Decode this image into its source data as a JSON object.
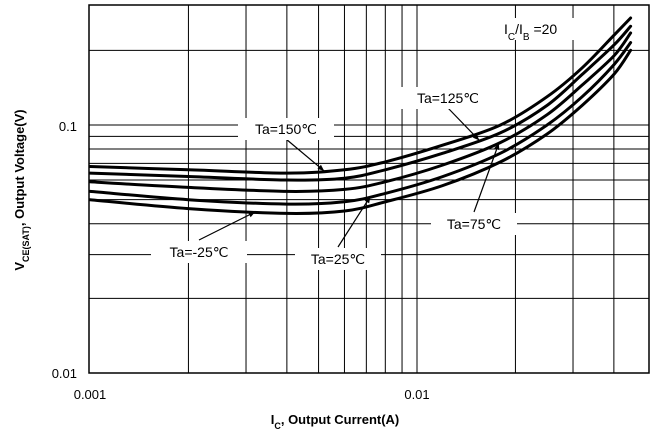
{
  "chart_data": {
    "type": "line",
    "x_scale": "log",
    "y_scale": "log",
    "xlim": [
      0.001,
      0.045
    ],
    "ylim": [
      0.01,
      0.3
    ],
    "grid": true,
    "x_ticks": [
      "0.001",
      "0.01"
    ],
    "y_ticks": [
      "0.01",
      "0.1"
    ],
    "xlabel": {
      "main": "I",
      "sub": "C",
      "rest": ", Output Current(A)"
    },
    "ylabel": {
      "main": "V",
      "sub": "CE(SAT)",
      "rest": ", Output Voltage(V)"
    },
    "condition": {
      "main1": "I",
      "sub1": "C",
      "mid": "/I",
      "sub2": "B",
      "rest": " =20"
    },
    "series": [
      {
        "name": "Ta=150℃",
        "x": [
          0.001,
          0.002,
          0.004,
          0.006,
          0.008,
          0.012,
          0.018,
          0.025,
          0.032,
          0.04,
          0.045
        ],
        "y": [
          0.068,
          0.066,
          0.064,
          0.066,
          0.071,
          0.083,
          0.1,
          0.13,
          0.17,
          0.23,
          0.27
        ]
      },
      {
        "name": "Ta=125℃",
        "x": [
          0.001,
          0.002,
          0.004,
          0.006,
          0.008,
          0.012,
          0.018,
          0.025,
          0.032,
          0.04,
          0.045
        ],
        "y": [
          0.064,
          0.062,
          0.06,
          0.061,
          0.066,
          0.077,
          0.093,
          0.12,
          0.16,
          0.21,
          0.25
        ]
      },
      {
        "name": "Ta=75℃",
        "x": [
          0.001,
          0.002,
          0.004,
          0.006,
          0.008,
          0.012,
          0.018,
          0.025,
          0.032,
          0.04,
          0.045
        ],
        "y": [
          0.059,
          0.056,
          0.054,
          0.055,
          0.059,
          0.069,
          0.085,
          0.11,
          0.145,
          0.19,
          0.235
        ]
      },
      {
        "name": "Ta=25℃",
        "x": [
          0.001,
          0.002,
          0.004,
          0.006,
          0.008,
          0.012,
          0.018,
          0.025,
          0.032,
          0.04,
          0.045
        ],
        "y": [
          0.054,
          0.05,
          0.048,
          0.049,
          0.053,
          0.062,
          0.077,
          0.1,
          0.13,
          0.175,
          0.215
        ]
      },
      {
        "name": "Ta=-25℃",
        "x": [
          0.001,
          0.002,
          0.004,
          0.006,
          0.008,
          0.012,
          0.018,
          0.025,
          0.032,
          0.04,
          0.045
        ],
        "y": [
          0.05,
          0.046,
          0.044,
          0.045,
          0.049,
          0.057,
          0.071,
          0.092,
          0.12,
          0.16,
          0.2
        ]
      }
    ],
    "annotations": [
      {
        "text": "Ta=150℃",
        "series": "Ta=150℃",
        "x_at": 0.0052
      },
      {
        "text": "Ta=125℃",
        "series": "Ta=125℃",
        "x_at": 0.0155
      },
      {
        "text": "Ta=75℃",
        "series": "Ta=75℃",
        "x_at": 0.0178
      },
      {
        "text": "Ta=25℃",
        "series": "Ta=25℃",
        "x_at": 0.0072
      },
      {
        "text": "Ta=-25℃",
        "series": "Ta=-25℃",
        "x_at": 0.0032
      }
    ]
  }
}
